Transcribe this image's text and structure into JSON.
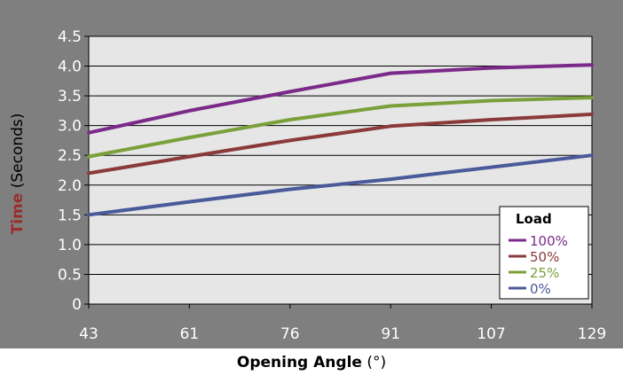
{
  "colors": {
    "panel_background": "#7f7f7f",
    "plot_background": "#e6e6e6",
    "gridline": "#000000",
    "time_label": "#9b2c2c"
  },
  "chart_data": {
    "type": "line",
    "x_tick_labels": [
      "43",
      "61",
      "76",
      "91",
      "107",
      "129"
    ],
    "y_tick_labels": [
      "0",
      "0.5",
      "1.0",
      "1.5",
      "2.0",
      "2.5",
      "3.0",
      "3.5",
      "4.0",
      "4.5"
    ],
    "ylim": [
      0,
      4.5
    ],
    "ylabel_bold": "Time",
    "ylabel_rest": "(Seconds)",
    "xlabel_bold": "Opening Angle",
    "xlabel_rest": "(°)",
    "grid": "horizontal",
    "legend": {
      "title": "Load",
      "placement": "bottom-right"
    },
    "series": [
      {
        "name": "100%",
        "color": "#7b2a8a",
        "values": [
          2.88,
          3.25,
          3.57,
          3.88,
          3.97,
          4.02
        ]
      },
      {
        "name": "50%",
        "color": "#8a3a3a",
        "values": [
          2.2,
          2.48,
          2.75,
          2.99,
          3.1,
          3.19
        ]
      },
      {
        "name": "25%",
        "color": "#7aa03a",
        "values": [
          2.48,
          2.8,
          3.1,
          3.33,
          3.42,
          3.47
        ]
      },
      {
        "name": "0%",
        "color": "#4a5a9a",
        "values": [
          1.5,
          1.72,
          1.93,
          2.1,
          2.3,
          2.5
        ]
      }
    ]
  }
}
